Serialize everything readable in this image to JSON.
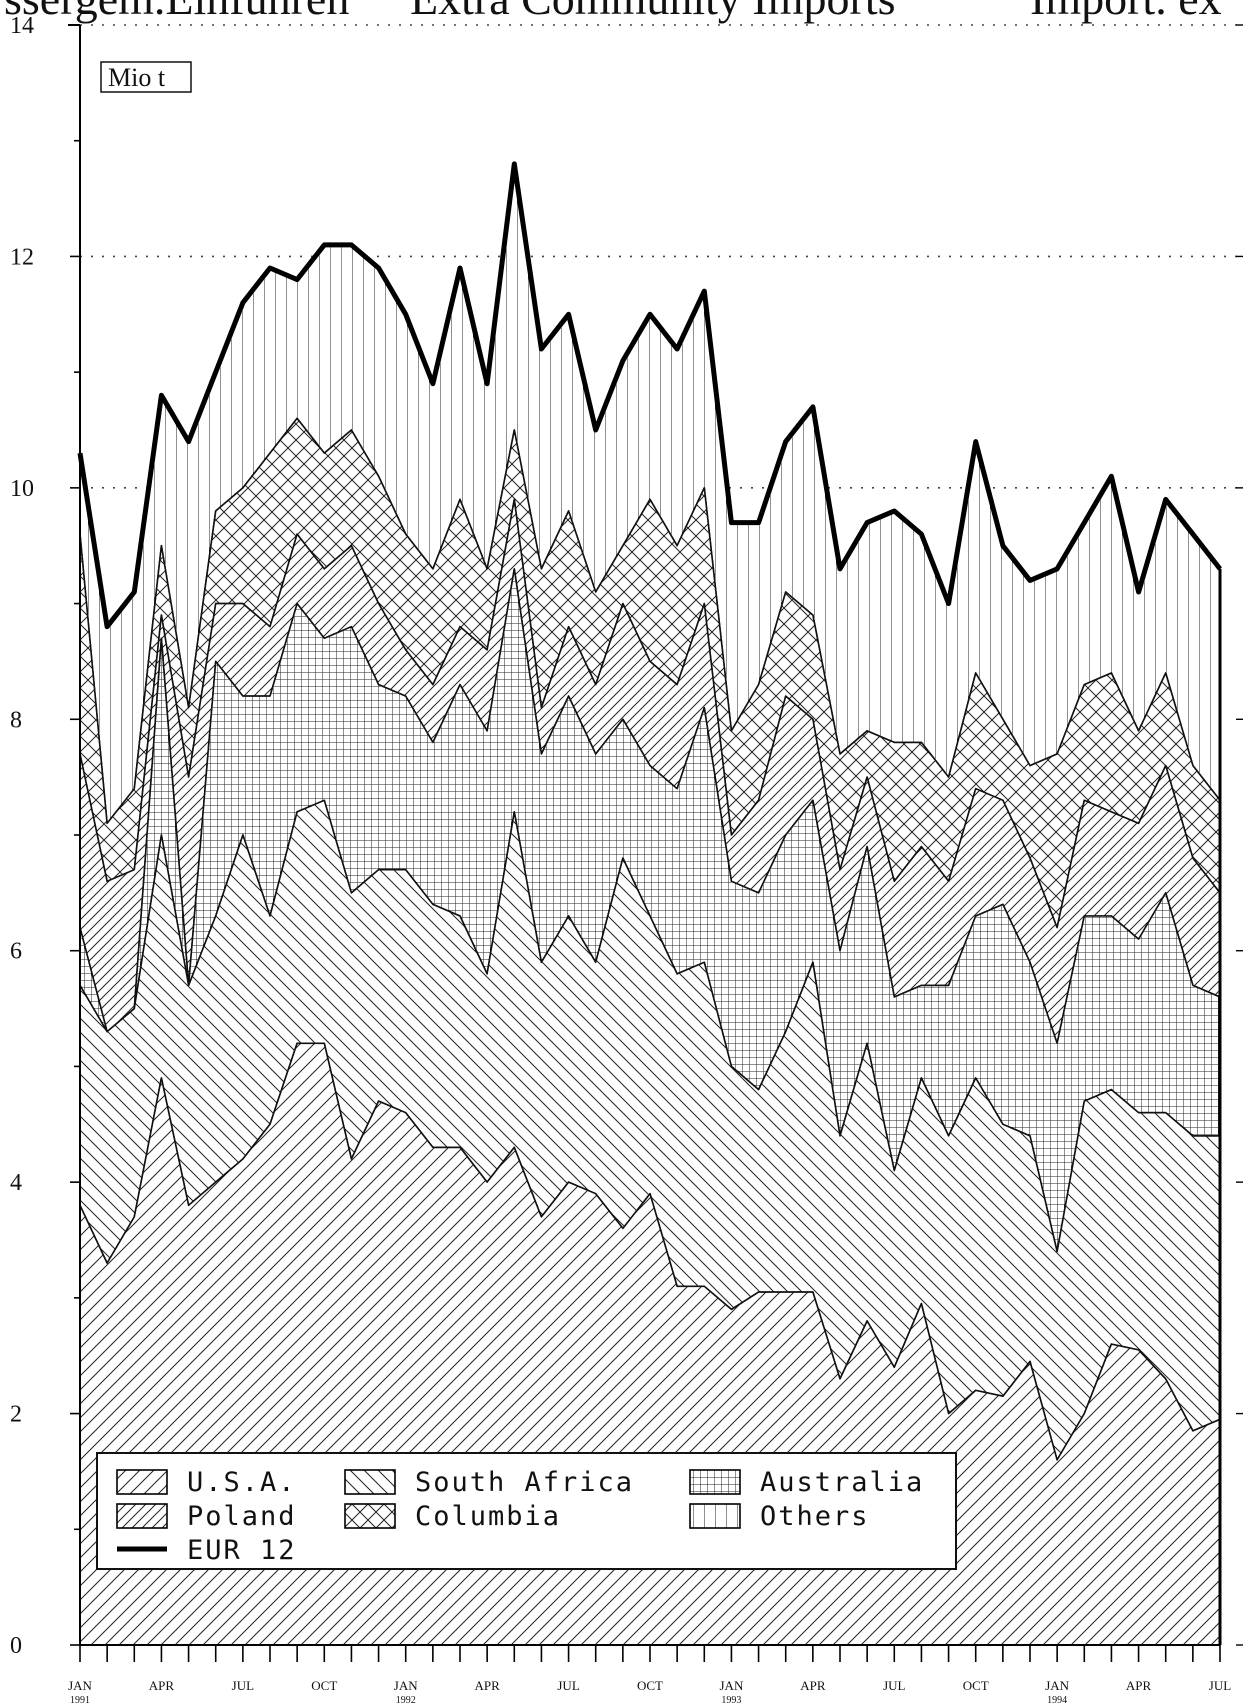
{
  "header": {
    "col1": "ssergem.Einfuhren",
    "col2": "Extra Community Imports",
    "col3": "Import. ex"
  },
  "chart_data": {
    "type": "area",
    "stacked": true,
    "unit_label": "Mio t",
    "ylim": [
      0,
      14
    ],
    "y_ticks": [
      0,
      2,
      4,
      6,
      8,
      10,
      12,
      14
    ],
    "grid": "dotted horizontal at 10, 12, 14",
    "x": [
      "1991-01",
      "1991-02",
      "1991-03",
      "1991-04",
      "1991-05",
      "1991-06",
      "1991-07",
      "1991-08",
      "1991-09",
      "1991-10",
      "1991-11",
      "1991-12",
      "1992-01",
      "1992-02",
      "1992-03",
      "1992-04",
      "1992-05",
      "1992-06",
      "1992-07",
      "1992-08",
      "1992-09",
      "1992-10",
      "1992-11",
      "1992-12",
      "1993-01",
      "1993-02",
      "1993-03",
      "1993-04",
      "1993-05",
      "1993-06",
      "1993-07",
      "1993-08",
      "1993-09",
      "1993-10",
      "1993-11",
      "1993-12",
      "1994-01",
      "1994-02",
      "1994-03",
      "1994-04",
      "1994-05",
      "1994-06",
      "1994-07"
    ],
    "x_tick_labels": [
      {
        "index": 0,
        "label": "JAN",
        "sub": "1991"
      },
      {
        "index": 3,
        "label": "APR",
        "sub": ""
      },
      {
        "index": 6,
        "label": "JUL",
        "sub": ""
      },
      {
        "index": 9,
        "label": "OCT",
        "sub": ""
      },
      {
        "index": 12,
        "label": "JAN",
        "sub": "1992"
      },
      {
        "index": 15,
        "label": "APR",
        "sub": ""
      },
      {
        "index": 18,
        "label": "JUL",
        "sub": ""
      },
      {
        "index": 21,
        "label": "OCT",
        "sub": ""
      },
      {
        "index": 24,
        "label": "JAN",
        "sub": "1993"
      },
      {
        "index": 27,
        "label": "APR",
        "sub": ""
      },
      {
        "index": 30,
        "label": "JUL",
        "sub": ""
      },
      {
        "index": 33,
        "label": "OCT",
        "sub": ""
      },
      {
        "index": 36,
        "label": "JAN",
        "sub": "1994"
      },
      {
        "index": 39,
        "label": "APR",
        "sub": ""
      },
      {
        "index": 42,
        "label": "JUL",
        "sub": ""
      }
    ],
    "series": [
      {
        "name": "U.S.A.",
        "pattern": "diag-up",
        "cumulative": [
          3.8,
          3.3,
          3.7,
          4.9,
          3.8,
          4.0,
          4.2,
          4.5,
          5.2,
          5.2,
          4.2,
          4.7,
          4.6,
          4.3,
          4.3,
          4.0,
          4.3,
          3.7,
          4.0,
          3.9,
          3.6,
          3.9,
          3.1,
          3.1,
          2.9,
          3.05,
          3.05,
          3.05,
          2.3,
          2.8,
          2.4,
          2.95,
          2.0,
          2.2,
          2.15,
          2.45,
          1.6,
          2.0,
          2.6,
          2.55,
          2.3,
          1.85,
          1.95
        ]
      },
      {
        "name": "South Africa",
        "pattern": "diag-down",
        "cumulative": [
          5.7,
          5.3,
          5.5,
          7.0,
          5.7,
          6.3,
          7.0,
          6.3,
          7.2,
          7.3,
          6.5,
          6.7,
          6.7,
          6.4,
          6.3,
          5.8,
          7.2,
          5.9,
          6.3,
          5.9,
          6.8,
          6.3,
          5.8,
          5.9,
          5.0,
          4.8,
          5.3,
          5.9,
          4.4,
          5.2,
          4.1,
          4.9,
          4.4,
          4.9,
          4.5,
          4.4,
          3.4,
          4.7,
          4.8,
          4.6,
          4.6,
          4.4,
          4.4
        ]
      },
      {
        "name": "Australia",
        "pattern": "grid",
        "cumulative": [
          6.2,
          5.3,
          5.5,
          8.7,
          5.7,
          8.5,
          8.2,
          8.2,
          9.0,
          8.7,
          8.8,
          8.3,
          8.2,
          7.8,
          8.3,
          7.9,
          9.3,
          7.7,
          8.2,
          7.7,
          8.0,
          7.6,
          7.4,
          8.1,
          6.6,
          6.5,
          7.0,
          7.3,
          6.0,
          6.9,
          5.6,
          5.7,
          5.7,
          6.3,
          6.4,
          5.9,
          5.2,
          6.3,
          6.3,
          6.1,
          6.5,
          5.7,
          5.6
        ]
      },
      {
        "name": "Poland",
        "pattern": "diag-up",
        "cumulative": [
          7.7,
          6.6,
          6.7,
          8.9,
          7.5,
          9.0,
          9.0,
          8.8,
          9.6,
          9.3,
          9.5,
          9.0,
          8.6,
          8.3,
          8.8,
          8.6,
          9.9,
          8.1,
          8.8,
          8.3,
          9.0,
          8.5,
          8.3,
          9.0,
          7.0,
          7.3,
          8.2,
          8.0,
          6.7,
          7.5,
          6.6,
          6.9,
          6.6,
          7.4,
          7.3,
          6.8,
          6.2,
          7.3,
          7.2,
          7.1,
          7.6,
          6.8,
          6.5
        ]
      },
      {
        "name": "Columbia",
        "pattern": "cross",
        "cumulative": [
          9.6,
          7.1,
          7.4,
          9.5,
          8.1,
          9.8,
          10.0,
          10.3,
          10.6,
          10.3,
          10.5,
          10.1,
          9.6,
          9.3,
          9.9,
          9.3,
          10.5,
          9.3,
          9.8,
          9.1,
          9.5,
          9.9,
          9.5,
          10.0,
          7.9,
          8.3,
          9.1,
          8.9,
          7.7,
          7.9,
          7.8,
          7.8,
          7.5,
          8.4,
          8.0,
          7.6,
          7.7,
          8.3,
          8.4,
          7.9,
          8.4,
          7.6,
          7.3
        ]
      },
      {
        "name": "Others",
        "pattern": "vertical",
        "cumulative": [
          10.3,
          8.8,
          9.1,
          10.8,
          10.4,
          11.0,
          11.6,
          11.9,
          11.8,
          12.1,
          12.1,
          11.9,
          11.5,
          10.9,
          11.9,
          10.9,
          12.8,
          11.2,
          11.5,
          10.5,
          11.1,
          11.5,
          11.2,
          11.7,
          9.7,
          9.7,
          10.4,
          10.7,
          9.3,
          9.7,
          9.8,
          9.6,
          9.0,
          10.4,
          9.5,
          9.2,
          9.3,
          9.7,
          10.1,
          9.1,
          9.9,
          9.6,
          9.3
        ]
      }
    ],
    "total_line": {
      "name": "EUR 12",
      "style": "thick solid black"
    },
    "legend": {
      "placement": "bottom-left",
      "items": [
        {
          "label": "U.S.A.",
          "pattern": "diag-up"
        },
        {
          "label": "South Africa",
          "pattern": "diag-down"
        },
        {
          "label": "Australia",
          "pattern": "grid"
        },
        {
          "label": "Poland",
          "pattern": "diag-up"
        },
        {
          "label": "Columbia",
          "pattern": "cross"
        },
        {
          "label": "Others",
          "pattern": "vertical"
        },
        {
          "label": "EUR 12",
          "pattern": "line"
        }
      ]
    }
  }
}
